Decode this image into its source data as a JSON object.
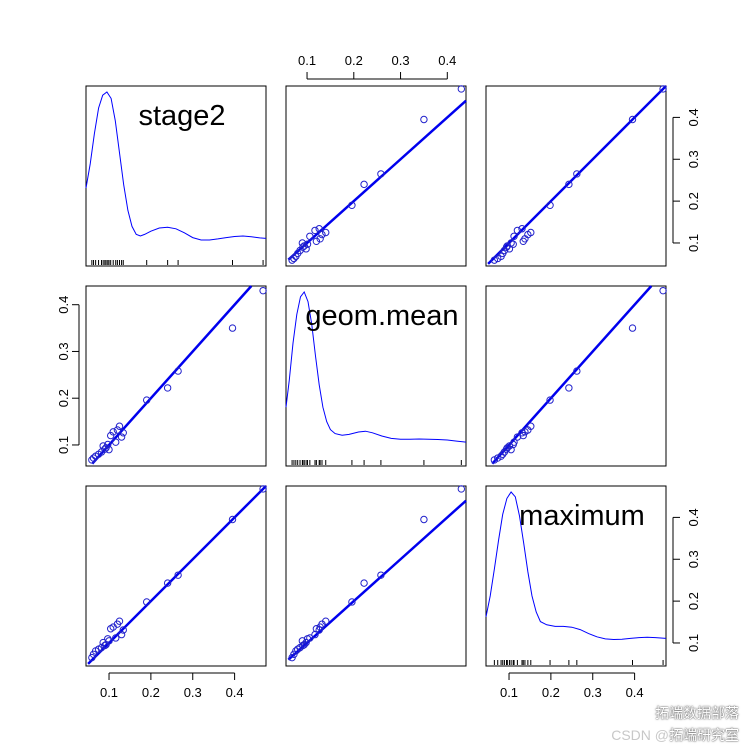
{
  "chart_data": {
    "type": "scatter",
    "kind": "scatterplot-matrix",
    "variables": [
      "stage2",
      "geom.mean",
      "maximum"
    ],
    "axes": {
      "stage2": {
        "ticks": [
          0.1,
          0.2,
          0.3,
          0.4
        ],
        "range": [
          0.045,
          0.475
        ]
      },
      "geom.mean": {
        "ticks": [
          0.1,
          0.2,
          0.3,
          0.4
        ],
        "range": [
          0.055,
          0.44
        ]
      },
      "maximum": {
        "ticks": [
          0.1,
          0.2,
          0.3,
          0.4
        ],
        "range": [
          0.045,
          0.475
        ]
      }
    },
    "observations": [
      {
        "stage2": 0.059,
        "geom.mean": 0.068,
        "maximum": 0.065
      },
      {
        "stage2": 0.063,
        "geom.mean": 0.072,
        "maximum": 0.073
      },
      {
        "stage2": 0.068,
        "geom.mean": 0.076,
        "maximum": 0.081
      },
      {
        "stage2": 0.075,
        "geom.mean": 0.08,
        "maximum": 0.085
      },
      {
        "stage2": 0.082,
        "geom.mean": 0.085,
        "maximum": 0.089
      },
      {
        "stage2": 0.086,
        "geom.mean": 0.098,
        "maximum": 0.101
      },
      {
        "stage2": 0.09,
        "geom.mean": 0.091,
        "maximum": 0.094
      },
      {
        "stage2": 0.093,
        "geom.mean": 0.094,
        "maximum": 0.096
      },
      {
        "stage2": 0.097,
        "geom.mean": 0.101,
        "maximum": 0.11
      },
      {
        "stage2": 0.1,
        "geom.mean": 0.09,
        "maximum": 0.105
      },
      {
        "stage2": 0.104,
        "geom.mean": 0.12,
        "maximum": 0.134
      },
      {
        "stage2": 0.11,
        "geom.mean": 0.128,
        "maximum": 0.138
      },
      {
        "stage2": 0.116,
        "geom.mean": 0.106,
        "maximum": 0.112
      },
      {
        "stage2": 0.12,
        "geom.mean": 0.132,
        "maximum": 0.145
      },
      {
        "stage2": 0.125,
        "geom.mean": 0.14,
        "maximum": 0.152
      },
      {
        "stage2": 0.13,
        "geom.mean": 0.117,
        "maximum": 0.12
      },
      {
        "stage2": 0.134,
        "geom.mean": 0.126,
        "maximum": 0.131
      },
      {
        "stage2": 0.19,
        "geom.mean": 0.196,
        "maximum": 0.198
      },
      {
        "stage2": 0.24,
        "geom.mean": 0.222,
        "maximum": 0.243
      },
      {
        "stage2": 0.265,
        "geom.mean": 0.258,
        "maximum": 0.262
      },
      {
        "stage2": 0.395,
        "geom.mean": 0.35,
        "maximum": 0.395
      },
      {
        "stage2": 0.468,
        "geom.mean": 0.43,
        "maximum": 0.468
      }
    ],
    "density": {
      "stage2": [
        [
          0.045,
          0.4
        ],
        [
          0.055,
          0.55
        ],
        [
          0.065,
          0.74
        ],
        [
          0.075,
          0.9
        ],
        [
          0.085,
          0.98
        ],
        [
          0.095,
          1.0
        ],
        [
          0.105,
          0.96
        ],
        [
          0.115,
          0.82
        ],
        [
          0.125,
          0.62
        ],
        [
          0.135,
          0.42
        ],
        [
          0.145,
          0.26
        ],
        [
          0.155,
          0.16
        ],
        [
          0.165,
          0.11
        ],
        [
          0.175,
          0.1
        ],
        [
          0.185,
          0.11
        ],
        [
          0.2,
          0.13
        ],
        [
          0.22,
          0.15
        ],
        [
          0.24,
          0.155
        ],
        [
          0.26,
          0.145
        ],
        [
          0.28,
          0.12
        ],
        [
          0.3,
          0.09
        ],
        [
          0.32,
          0.075
        ],
        [
          0.34,
          0.075
        ],
        [
          0.36,
          0.082
        ],
        [
          0.38,
          0.09
        ],
        [
          0.4,
          0.097
        ],
        [
          0.42,
          0.1
        ],
        [
          0.44,
          0.095
        ],
        [
          0.46,
          0.088
        ],
        [
          0.475,
          0.085
        ]
      ],
      "geom.mean": [
        [
          0.055,
          0.28
        ],
        [
          0.062,
          0.45
        ],
        [
          0.07,
          0.68
        ],
        [
          0.078,
          0.86
        ],
        [
          0.086,
          0.97
        ],
        [
          0.094,
          1.0
        ],
        [
          0.102,
          0.94
        ],
        [
          0.11,
          0.8
        ],
        [
          0.118,
          0.6
        ],
        [
          0.126,
          0.42
        ],
        [
          0.134,
          0.28
        ],
        [
          0.142,
          0.19
        ],
        [
          0.15,
          0.14
        ],
        [
          0.16,
          0.115
        ],
        [
          0.175,
          0.105
        ],
        [
          0.19,
          0.11
        ],
        [
          0.21,
          0.125
        ],
        [
          0.225,
          0.13
        ],
        [
          0.24,
          0.12
        ],
        [
          0.26,
          0.1
        ],
        [
          0.28,
          0.085
        ],
        [
          0.3,
          0.08
        ],
        [
          0.32,
          0.08
        ],
        [
          0.34,
          0.081
        ],
        [
          0.36,
          0.08
        ],
        [
          0.38,
          0.078
        ],
        [
          0.4,
          0.075
        ],
        [
          0.42,
          0.068
        ],
        [
          0.44,
          0.062
        ]
      ],
      "maximum": [
        [
          0.045,
          0.22
        ],
        [
          0.055,
          0.35
        ],
        [
          0.065,
          0.52
        ],
        [
          0.075,
          0.7
        ],
        [
          0.085,
          0.86
        ],
        [
          0.095,
          0.96
        ],
        [
          0.105,
          1.0
        ],
        [
          0.115,
          0.97
        ],
        [
          0.125,
          0.85
        ],
        [
          0.135,
          0.68
        ],
        [
          0.145,
          0.5
        ],
        [
          0.155,
          0.35
        ],
        [
          0.165,
          0.25
        ],
        [
          0.175,
          0.19
        ],
        [
          0.19,
          0.17
        ],
        [
          0.21,
          0.16
        ],
        [
          0.23,
          0.16
        ],
        [
          0.25,
          0.155
        ],
        [
          0.27,
          0.14
        ],
        [
          0.29,
          0.115
        ],
        [
          0.31,
          0.095
        ],
        [
          0.33,
          0.082
        ],
        [
          0.35,
          0.078
        ],
        [
          0.37,
          0.08
        ],
        [
          0.39,
          0.085
        ],
        [
          0.41,
          0.09
        ],
        [
          0.43,
          0.092
        ],
        [
          0.45,
          0.09
        ],
        [
          0.475,
          0.085
        ]
      ]
    },
    "fit_lines": "y = x (regression line per panel)",
    "grid": false
  },
  "colors": {
    "points": "#2222cc",
    "fit": "#0000ee",
    "density": "#0000ff",
    "frame": "#000000"
  },
  "watermark": {
    "line1": "拓端数据部落",
    "line2_prefix": "CSDN @",
    "line2_main": "拓端研究室"
  }
}
